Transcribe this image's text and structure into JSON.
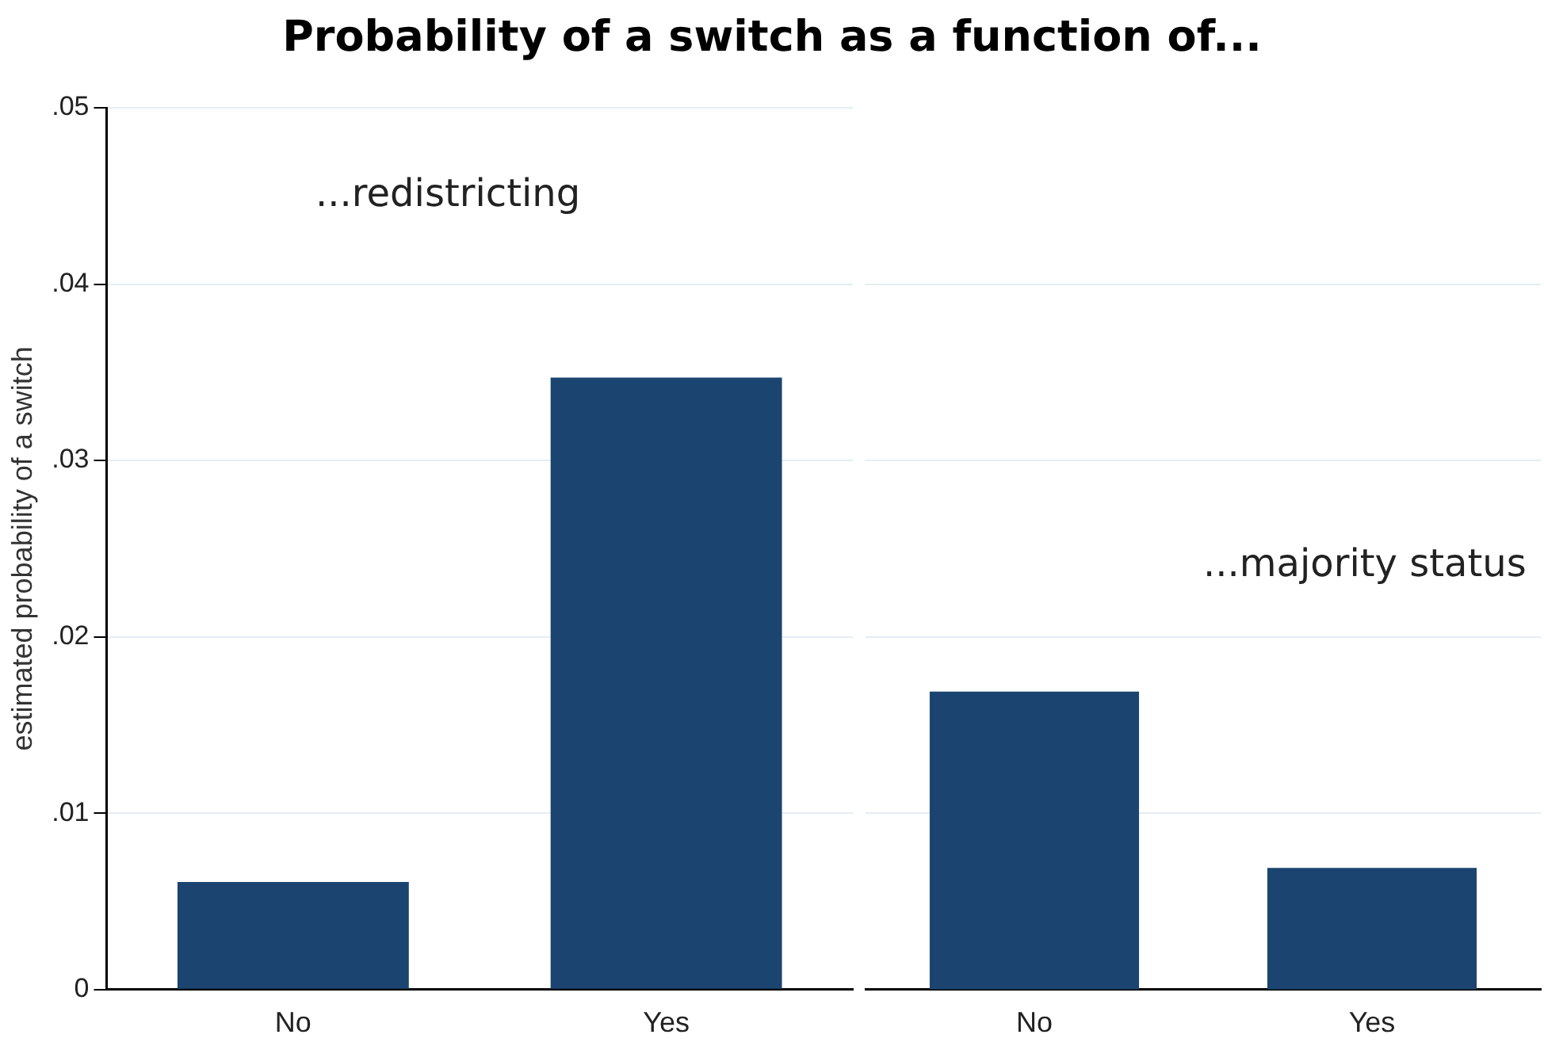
{
  "chart_data": [
    {
      "type": "bar",
      "title": "Probability of a switch as a function of...",
      "ylabel": "estimated probability of a switch",
      "annotations": [
        "...redistricting"
      ],
      "categories": [
        "No",
        "Yes"
      ],
      "values": [
        0.0061,
        0.0347
      ],
      "color": "#1b4570",
      "ylim": [
        0,
        0.05
      ],
      "yticks": [
        0,
        {
          "value": 0.01,
          "label": ".01"
        },
        {
          "value": 0.02,
          "label": ".02"
        },
        {
          "value": 0.03,
          "label": ".03"
        },
        {
          "value": 0.04,
          "label": ".04"
        },
        {
          "value": 0.05,
          "label": ".05"
        }
      ],
      "grid": "y"
    },
    {
      "type": "bar",
      "annotations": [
        "...majority status"
      ],
      "categories": [
        "No",
        "Yes"
      ],
      "values": [
        0.0169,
        0.0069
      ],
      "color": "#1b4570",
      "ylim": [
        0,
        0.05
      ],
      "yticks": [
        {
          "value": 0.01,
          "label": null
        },
        {
          "value": 0.02,
          "label": null
        },
        {
          "value": 0.03,
          "label": null
        },
        {
          "value": 0.04,
          "label": null
        }
      ],
      "grid": "y",
      "tick_labels": "x"
    }
  ]
}
